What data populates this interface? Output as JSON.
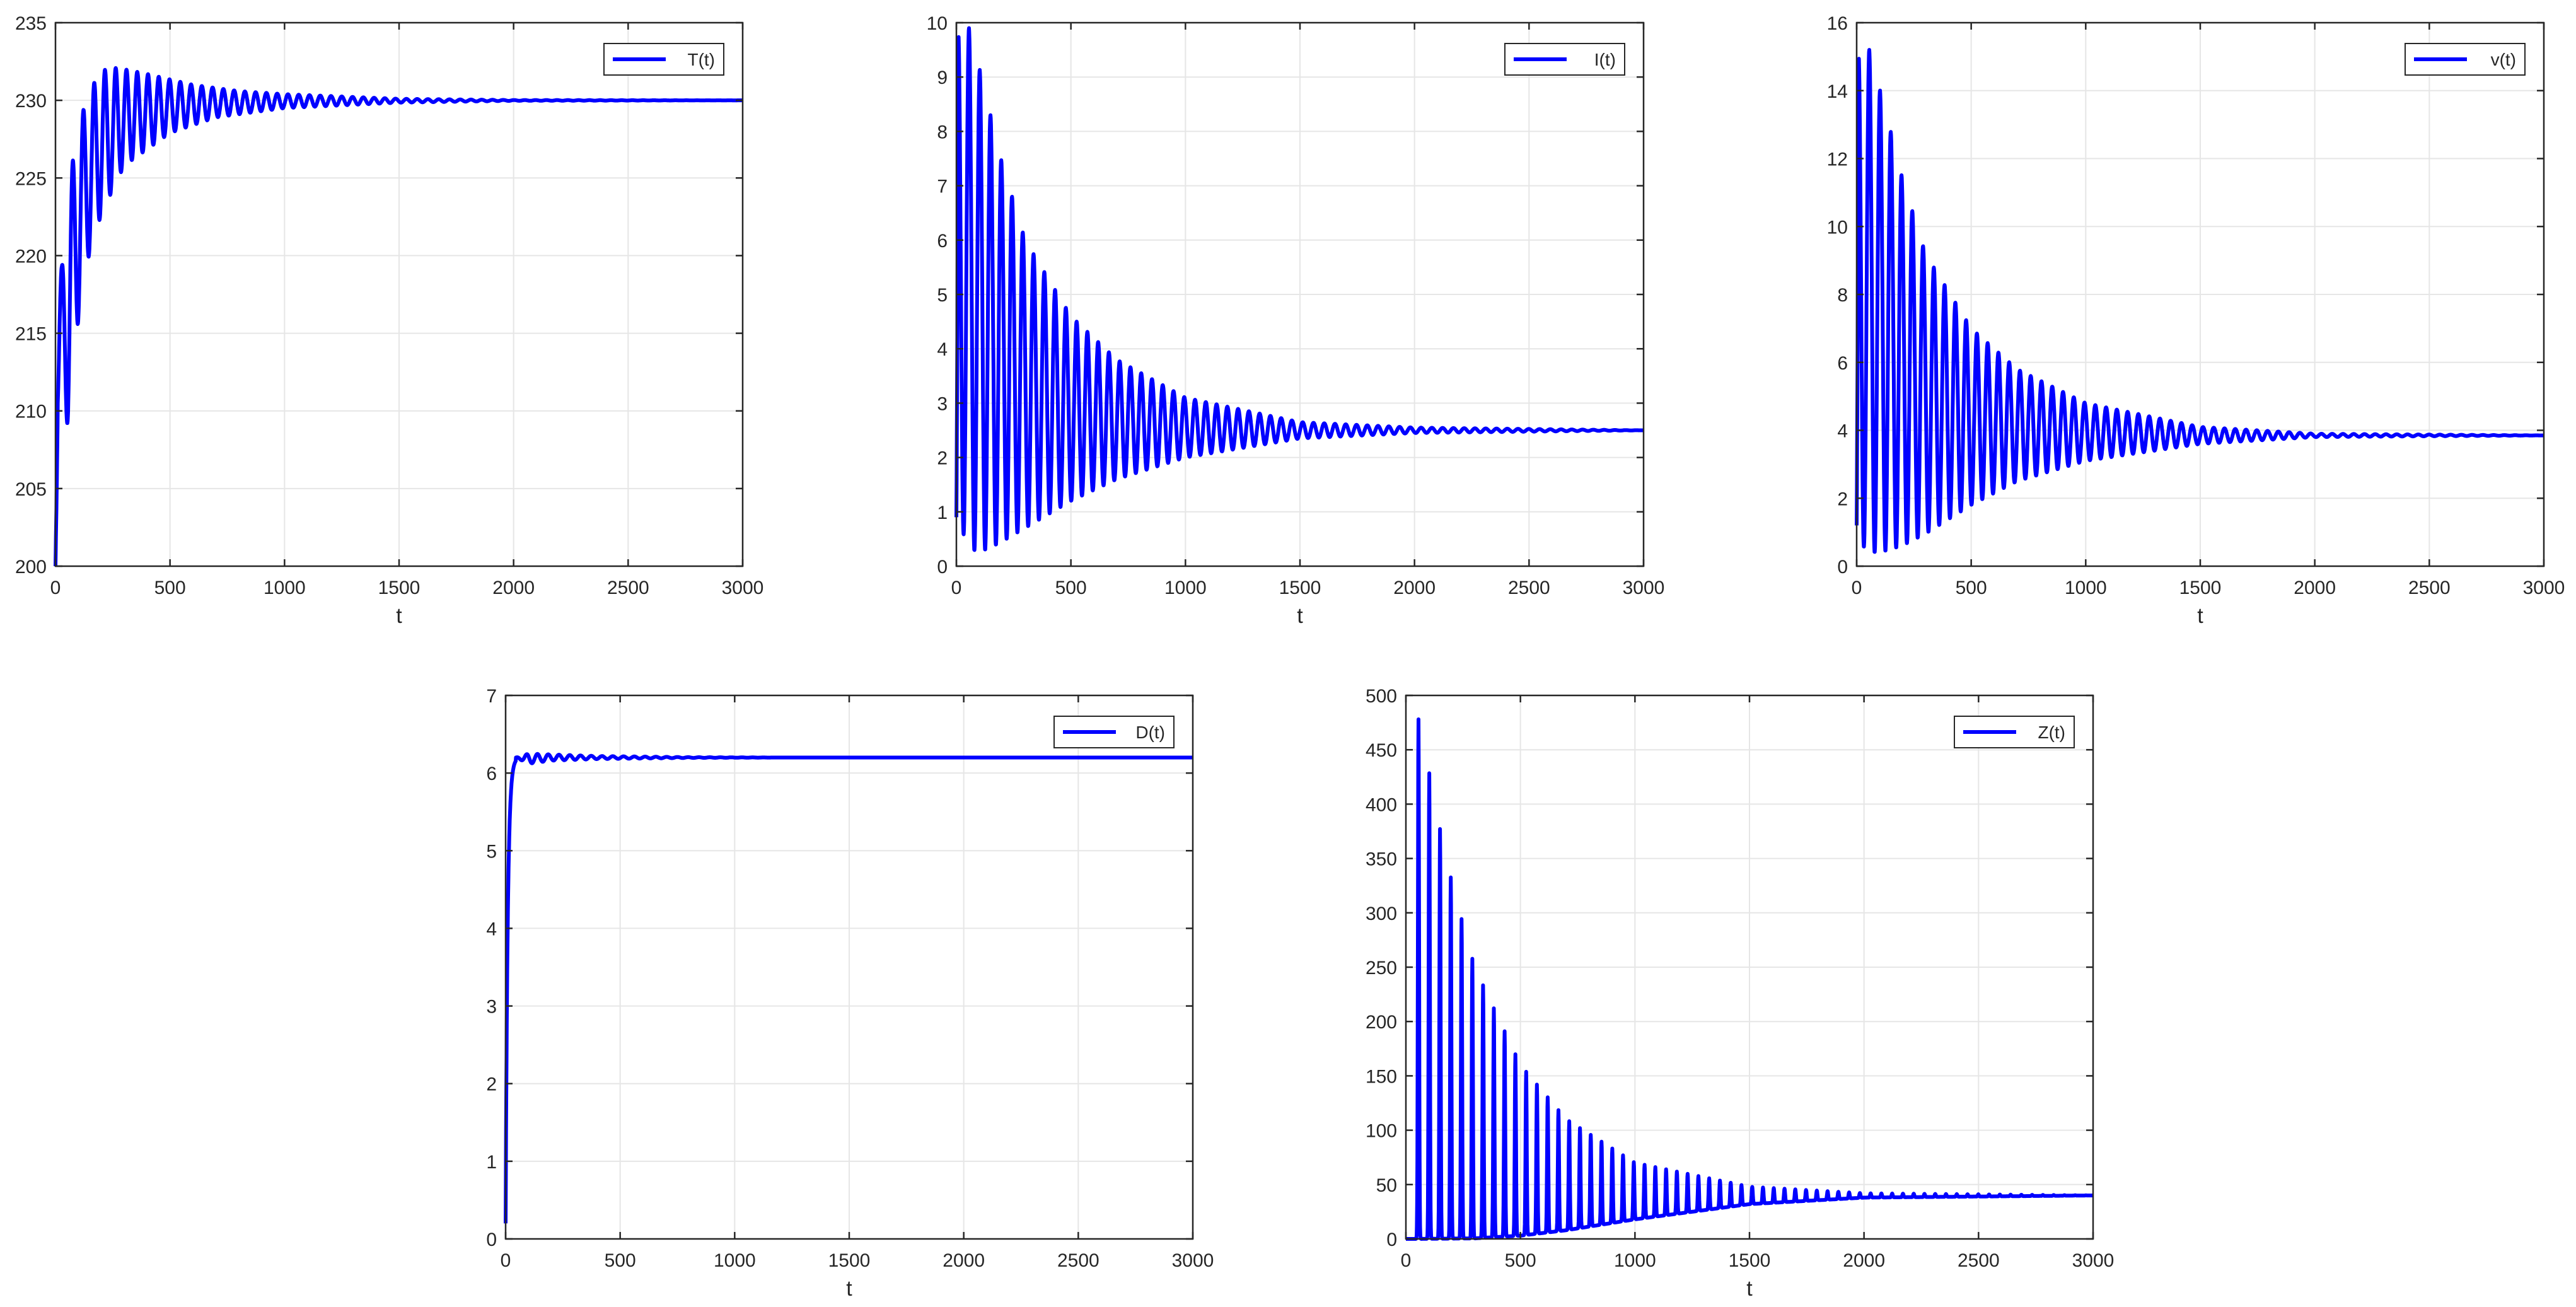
{
  "figure": {
    "line_color": "#0000ff",
    "grid_color": "#e6e6e6",
    "axis_color": "#262626"
  },
  "chart_data": [
    {
      "id": "T",
      "type": "line",
      "title": "",
      "xlabel": "t",
      "ylabel": "",
      "legend_label": "T(t)",
      "legend_position": "top-right",
      "grid": true,
      "xlim": [
        0,
        3000
      ],
      "ylim": [
        200,
        235
      ],
      "xticks": [
        0,
        500,
        1000,
        1500,
        2000,
        2500,
        3000
      ],
      "yticks": [
        200,
        205,
        210,
        215,
        220,
        225,
        230,
        235
      ],
      "model": {
        "period": 47,
        "start": 200,
        "steady": 230,
        "kind": "damped",
        "peaks": [
          [
            28,
            219.3
          ],
          [
            90,
            228.2
          ],
          [
            190,
            231.9
          ],
          [
            270,
            232.1
          ],
          [
            400,
            231.7
          ],
          [
            600,
            231.0
          ],
          [
            800,
            230.6
          ],
          [
            1000,
            230.4
          ],
          [
            1500,
            230.1
          ],
          [
            2000,
            230.02
          ],
          [
            3000,
            230.0
          ]
        ],
        "troughs": [
          [
            55,
            209.2
          ],
          [
            110,
            217.4
          ],
          [
            160,
            221.0
          ],
          [
            210,
            223.0
          ],
          [
            300,
            225.8
          ],
          [
            500,
            227.9
          ],
          [
            700,
            228.9
          ],
          [
            1000,
            229.5
          ],
          [
            1500,
            229.85
          ],
          [
            2000,
            229.97
          ],
          [
            3000,
            230.0
          ]
        ]
      }
    },
    {
      "id": "I",
      "type": "line",
      "title": "",
      "xlabel": "t",
      "ylabel": "",
      "legend_label": "I(t)",
      "legend_position": "top-right",
      "grid": true,
      "xlim": [
        0,
        3000
      ],
      "ylim": [
        0,
        10
      ],
      "xticks": [
        0,
        500,
        1000,
        1500,
        2000,
        2500,
        3000
      ],
      "yticks": [
        0,
        1,
        2,
        3,
        4,
        5,
        6,
        7,
        8,
        9,
        10
      ],
      "model": {
        "period": 47,
        "start": 0.9,
        "steady": 2.5,
        "kind": "damped",
        "peaks": [
          [
            55,
            9.9
          ],
          [
            110,
            9.0
          ],
          [
            160,
            8.1
          ],
          [
            200,
            7.4
          ],
          [
            300,
            6.0
          ],
          [
            500,
            4.6
          ],
          [
            700,
            3.8
          ],
          [
            1000,
            3.1
          ],
          [
            1500,
            2.65
          ],
          [
            2000,
            2.55
          ],
          [
            3000,
            2.5
          ]
        ],
        "troughs": [
          [
            20,
            0.65
          ],
          [
            80,
            0.28
          ],
          [
            130,
            0.3
          ],
          [
            200,
            0.45
          ],
          [
            300,
            0.7
          ],
          [
            500,
            1.2
          ],
          [
            700,
            1.6
          ],
          [
            1000,
            2.0
          ],
          [
            1500,
            2.35
          ],
          [
            2000,
            2.45
          ],
          [
            3000,
            2.5
          ]
        ]
      }
    },
    {
      "id": "v",
      "type": "line",
      "title": "",
      "xlabel": "t",
      "ylabel": "",
      "legend_label": "v(t)",
      "legend_position": "top-right",
      "grid": true,
      "xlim": [
        0,
        3000
      ],
      "ylim": [
        0,
        16
      ],
      "xticks": [
        0,
        500,
        1000,
        1500,
        2000,
        2500,
        3000
      ],
      "yticks": [
        0,
        2,
        4,
        6,
        8,
        10,
        12,
        14,
        16
      ],
      "model": {
        "period": 47,
        "start": 1.2,
        "steady": 3.85,
        "kind": "damped",
        "peaks": [
          [
            55,
            15.2
          ],
          [
            110,
            13.8
          ],
          [
            160,
            12.5
          ],
          [
            200,
            11.4
          ],
          [
            300,
            9.2
          ],
          [
            500,
            7.0
          ],
          [
            700,
            5.8
          ],
          [
            1000,
            4.8
          ],
          [
            1500,
            4.1
          ],
          [
            2000,
            3.9
          ],
          [
            3000,
            3.85
          ]
        ],
        "troughs": [
          [
            20,
            0.6
          ],
          [
            80,
            0.4
          ],
          [
            130,
            0.45
          ],
          [
            200,
            0.6
          ],
          [
            300,
            0.95
          ],
          [
            500,
            1.8
          ],
          [
            700,
            2.5
          ],
          [
            1000,
            3.1
          ],
          [
            1500,
            3.6
          ],
          [
            2000,
            3.8
          ],
          [
            3000,
            3.85
          ]
        ]
      }
    },
    {
      "id": "D",
      "type": "line",
      "title": "",
      "xlabel": "t",
      "ylabel": "",
      "legend_label": "D(t)",
      "legend_position": "top-right",
      "grid": true,
      "xlim": [
        0,
        3000
      ],
      "ylim": [
        0,
        7
      ],
      "xticks": [
        0,
        500,
        1000,
        1500,
        2000,
        2500,
        3000
      ],
      "yticks": [
        0,
        1,
        2,
        3,
        4,
        5,
        6,
        7
      ],
      "model": {
        "period": 47,
        "start": 0.2,
        "steady": 6.2,
        "kind": "rise",
        "peaks": [
          [
            45,
            6.2
          ],
          [
            100,
            6.25
          ],
          [
            200,
            6.24
          ],
          [
            400,
            6.22
          ],
          [
            800,
            6.205
          ],
          [
            1200,
            6.2
          ],
          [
            3000,
            6.2
          ]
        ],
        "troughs": [
          [
            45,
            6.2
          ],
          [
            100,
            6.12
          ],
          [
            200,
            6.16
          ],
          [
            400,
            6.18
          ],
          [
            800,
            6.195
          ],
          [
            1200,
            6.2
          ],
          [
            3000,
            6.2
          ]
        ]
      }
    },
    {
      "id": "Z",
      "type": "line",
      "title": "",
      "xlabel": "t",
      "ylabel": "",
      "legend_label": "Z(t)",
      "legend_position": "top-right",
      "grid": true,
      "xlim": [
        0,
        3000
      ],
      "ylim": [
        0,
        500
      ],
      "xticks": [
        0,
        500,
        1000,
        1500,
        2000,
        2500,
        3000
      ],
      "yticks": [
        0,
        50,
        100,
        150,
        200,
        250,
        300,
        350,
        400,
        450,
        500
      ],
      "model": {
        "period": 47,
        "start": 0,
        "steady": 40,
        "kind": "spike",
        "peaks": [
          [
            55,
            478
          ],
          [
            110,
            420
          ],
          [
            160,
            365
          ],
          [
            210,
            320
          ],
          [
            300,
            250
          ],
          [
            500,
            160
          ],
          [
            700,
            110
          ],
          [
            1000,
            70
          ],
          [
            1500,
            48
          ],
          [
            2000,
            42
          ],
          [
            3000,
            40
          ]
        ],
        "troughs": [
          [
            55,
            0
          ],
          [
            300,
            0.5
          ],
          [
            500,
            3
          ],
          [
            700,
            8
          ],
          [
            1000,
            18
          ],
          [
            1500,
            32
          ],
          [
            2000,
            38
          ],
          [
            3000,
            40
          ]
        ]
      }
    }
  ]
}
